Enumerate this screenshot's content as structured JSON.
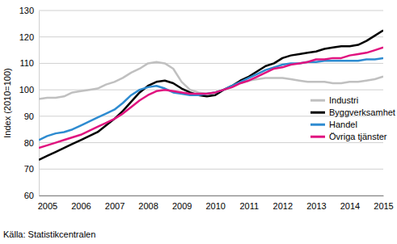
{
  "chart_data": {
    "type": "line",
    "y_label": "Index (2010=100)",
    "source": "Källa: Statistikcentralen",
    "categories": [
      null,
      "2005",
      null,
      null,
      null,
      "2006",
      null,
      null,
      null,
      "2007",
      null,
      null,
      null,
      "2008",
      null,
      null,
      null,
      "2009",
      null,
      null,
      null,
      "2010",
      null,
      null,
      null,
      "2011",
      null,
      null,
      null,
      "2012",
      null,
      null,
      null,
      "2013",
      null,
      null,
      null,
      "2014",
      null,
      null,
      null,
      "2015"
    ],
    "series": [
      {
        "name": "Industri",
        "color": "#c0c0c0",
        "values": [
          96.5,
          97,
          97,
          97.5,
          99,
          99.5,
          100,
          100.5,
          102,
          103,
          104.5,
          106.5,
          108,
          110,
          110.5,
          110,
          108,
          103,
          100,
          99,
          98.5,
          99,
          100,
          101,
          102.5,
          103.5,
          104,
          104.5,
          104.5,
          104.5,
          104,
          103.5,
          103,
          103,
          103,
          102.5,
          102.5,
          103,
          103,
          103.5,
          104,
          105
        ]
      },
      {
        "name": "Byggverksamhet",
        "color": "#000000",
        "values": [
          73.5,
          75,
          76.5,
          78,
          79.5,
          81,
          82.5,
          84,
          86.5,
          89,
          92,
          95.5,
          99,
          101.5,
          103,
          103.5,
          102.5,
          100.5,
          99,
          98,
          97.5,
          98,
          100,
          101.5,
          103.5,
          105,
          107,
          109,
          110,
          112,
          113,
          113.5,
          114,
          114.5,
          115.5,
          116,
          116.5,
          116.5,
          117,
          118.5,
          120.5,
          122.5
        ]
      },
      {
        "name": "Handel",
        "color": "#2e8bd0",
        "values": [
          81,
          82.5,
          83.5,
          84,
          85,
          86.5,
          88,
          89.5,
          91,
          92.5,
          95,
          98,
          100,
          101,
          101.5,
          100.5,
          99,
          98.5,
          98,
          98,
          98.5,
          99,
          100,
          101.5,
          103,
          104.5,
          106,
          107.5,
          108.5,
          109.5,
          110,
          110,
          110.5,
          110.5,
          111,
          111,
          111,
          111,
          111,
          111.5,
          111.5,
          112
        ]
      },
      {
        "name": "Övriga tjänster",
        "color": "#e0137f",
        "values": [
          78,
          79,
          80,
          81,
          82,
          83,
          84.5,
          86,
          87.5,
          89,
          91,
          93.5,
          96,
          98,
          99.5,
          100,
          99.5,
          99,
          98.5,
          98.5,
          98.5,
          99,
          100,
          101,
          102.5,
          103.5,
          105,
          106.5,
          108,
          108.5,
          109.5,
          110,
          110.5,
          111.5,
          111.5,
          112,
          112,
          113,
          113.5,
          114,
          115,
          116
        ]
      }
    ],
    "ylim": [
      60,
      130
    ],
    "yticks": [
      60,
      70,
      80,
      90,
      100,
      110,
      120,
      130
    ],
    "grid": true,
    "legend": "right"
  }
}
